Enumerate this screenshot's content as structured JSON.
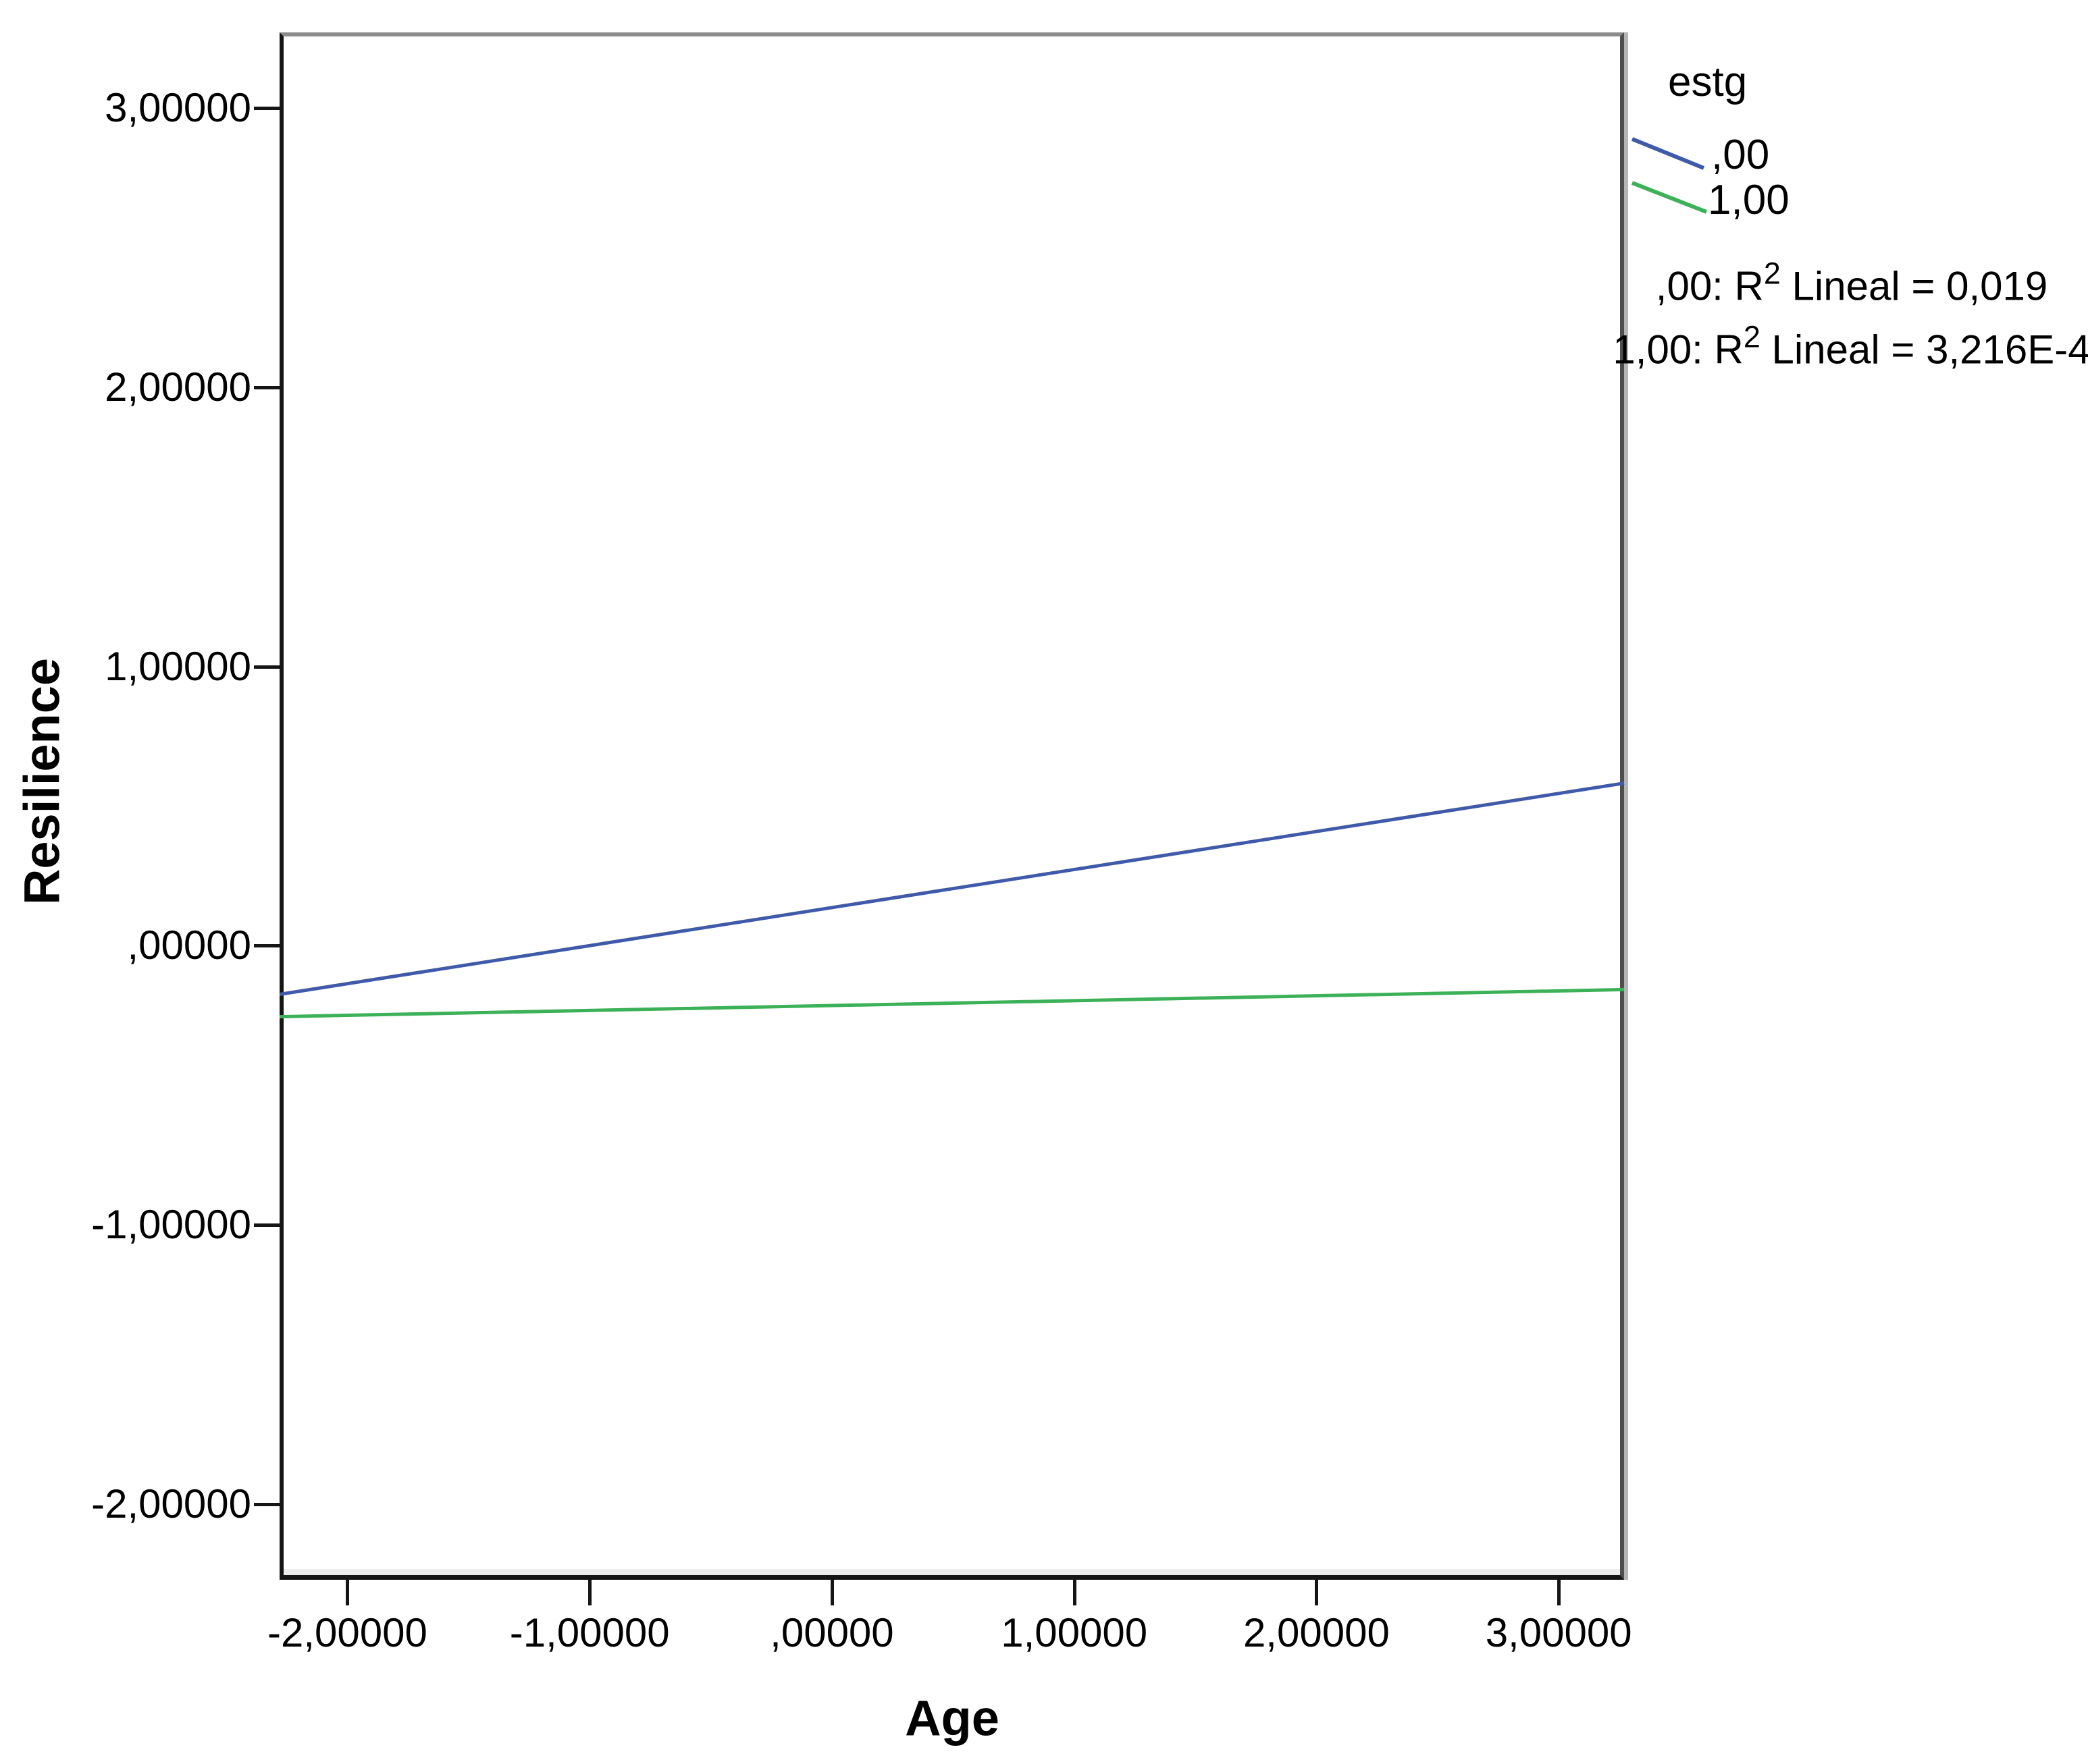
{
  "chart_data": {
    "type": "line",
    "title": "",
    "xlabel": "Age",
    "ylabel": "Resilience",
    "grid": false,
    "background": "#ffffff",
    "x_axis": {
      "tick_labels": [
        "-2,00000",
        "-1,00000",
        ",00000",
        "1,00000",
        "2,00000",
        "3,00000"
      ],
      "tick_values": [
        -2,
        -1,
        0,
        1,
        2,
        3
      ],
      "range": [
        -2.28,
        3.27
      ]
    },
    "y_axis": {
      "tick_labels": [
        "3,00000",
        "2,00000",
        "1,00000",
        ",00000",
        "-1,00000",
        "-2,00000"
      ],
      "tick_values": [
        3,
        2,
        1,
        0,
        -1,
        -2
      ],
      "range": [
        -2.27,
        3.27
      ]
    },
    "legend": {
      "title": "estg",
      "position": "top-right",
      "entries": [
        {
          "label": ",00",
          "color": "#3f5aa9"
        },
        {
          "label": "1,00",
          "color": "#3cb158"
        }
      ]
    },
    "series": [
      {
        "name": ",00",
        "group": "estg = ,00",
        "fit": "linear",
        "color": "#3f5aa9",
        "endpoints": [
          [
            -2.28,
            -0.174
          ],
          [
            3.27,
            0.582
          ]
        ],
        "slope": 0.136,
        "intercept": 0.137,
        "r2_value": "0,019",
        "r2_annotation": {
          "text": ",00: R² Lineal = 0,019",
          "prefix": ",00: R",
          "sup": "2",
          "suffix": " Lineal = 0,019"
        }
      },
      {
        "name": "1,00",
        "group": "estg = 1,00",
        "fit": "linear",
        "color": "#3cb158",
        "endpoints": [
          [
            -2.28,
            -0.254
          ],
          [
            3.27,
            -0.157
          ]
        ],
        "slope": 0.017,
        "intercept": -0.214,
        "r2_value": "3,216E-4",
        "r2_annotation": {
          "text": "1,00: R² Lineal = 3,216E-4",
          "prefix": "1,00: R",
          "sup": "2",
          "suffix": " Lineal = 3,216E-4"
        }
      }
    ],
    "style": {
      "axis_color": "#151515",
      "frame_top_color": "#8c8c8c",
      "frame_right_color": "#4e4e4e",
      "frame_shadow_color": "#b5b5b5",
      "text_color": "#000000"
    }
  }
}
